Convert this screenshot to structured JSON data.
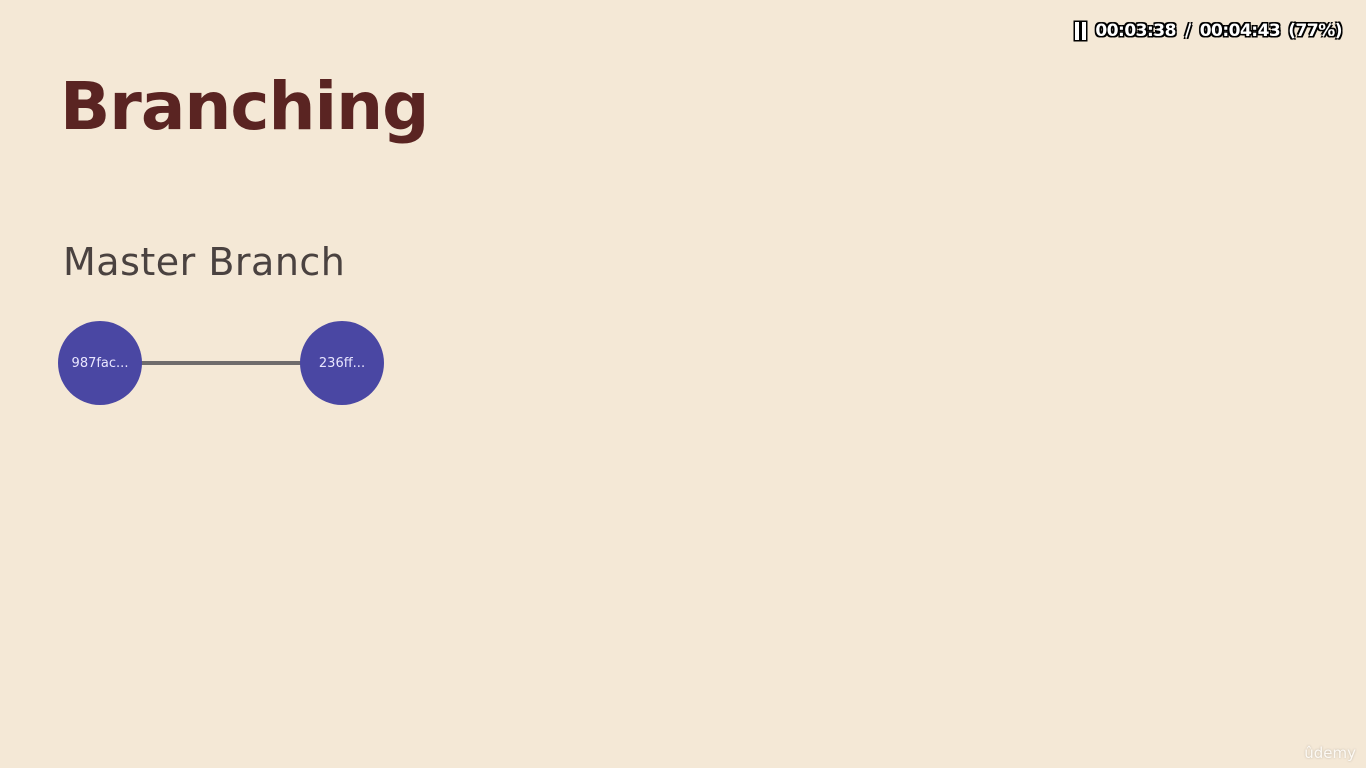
{
  "osd": {
    "status_icon": "pause-icon",
    "elapsed": "00:03:38",
    "separator": "/",
    "total": "00:04:43",
    "percent": "(77%)"
  },
  "slide": {
    "title": "Branching",
    "subtitle": "Master Branch",
    "commits": [
      {
        "label": "987fac..."
      },
      {
        "label": "236ff..."
      }
    ]
  },
  "watermark": "ûdemy",
  "colors": {
    "background": "#f4e8d6",
    "title": "#5a2422",
    "commit_node": "#4a47a3",
    "edge": "#6f6c6c"
  }
}
